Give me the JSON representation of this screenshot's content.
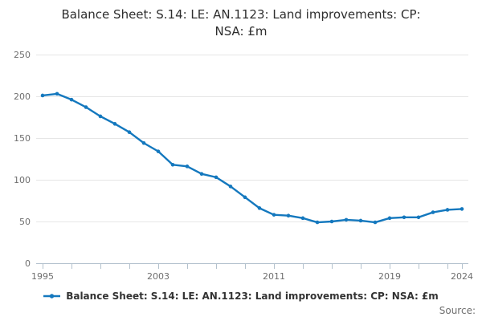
{
  "title": "Balance Sheet: S.14: LE: AN.1123: Land improvements: CP: NSA: £m",
  "title_lines": [
    "Balance Sheet: S.14: LE: AN.1123: Land improvements: CP:",
    "NSA: £m"
  ],
  "legend": {
    "label": "Balance Sheet: S.14: LE: AN.1123: Land improvements: CP: NSA: £m",
    "marker": "line-with-dot"
  },
  "source_label": "Source:",
  "colors": {
    "line": "#1478be",
    "grid": "#e6e6e6",
    "axis": "#b3c1cd",
    "tick_label": "#6e6e6e",
    "title_text": "#2e2e2e"
  },
  "chart_data": {
    "type": "line",
    "title": "Balance Sheet: S.14: LE: AN.1123: Land improvements: CP: NSA: £m",
    "x": [
      1995,
      1996,
      1997,
      1998,
      1999,
      2000,
      2001,
      2002,
      2003,
      2004,
      2005,
      2006,
      2007,
      2008,
      2009,
      2010,
      2011,
      2012,
      2013,
      2014,
      2015,
      2016,
      2017,
      2018,
      2019,
      2020,
      2021,
      2022,
      2023,
      2024
    ],
    "series": [
      {
        "name": "Balance Sheet: S.14: LE: AN.1123: Land improvements: CP: NSA: £m",
        "values": [
          201,
          203,
          196,
          187,
          176,
          167,
          157,
          144,
          134,
          118,
          116,
          107,
          103,
          92,
          79,
          66,
          58,
          57,
          54,
          49,
          50,
          52,
          51,
          49,
          54,
          55,
          55,
          61,
          64,
          65
        ]
      }
    ],
    "xlabel": "",
    "ylabel": "",
    "ylim": [
      0,
      250
    ],
    "yticks": [
      0,
      50,
      100,
      150,
      200,
      250
    ],
    "xtick_labels": [
      "1995",
      "2003",
      "2011",
      "2019",
      "2024"
    ],
    "xtick_label_years": [
      1995,
      2003,
      2011,
      2019,
      2024
    ],
    "minor_xtick_step": 2,
    "grid": "horizontal",
    "legend_position": "bottom",
    "markers": true
  }
}
